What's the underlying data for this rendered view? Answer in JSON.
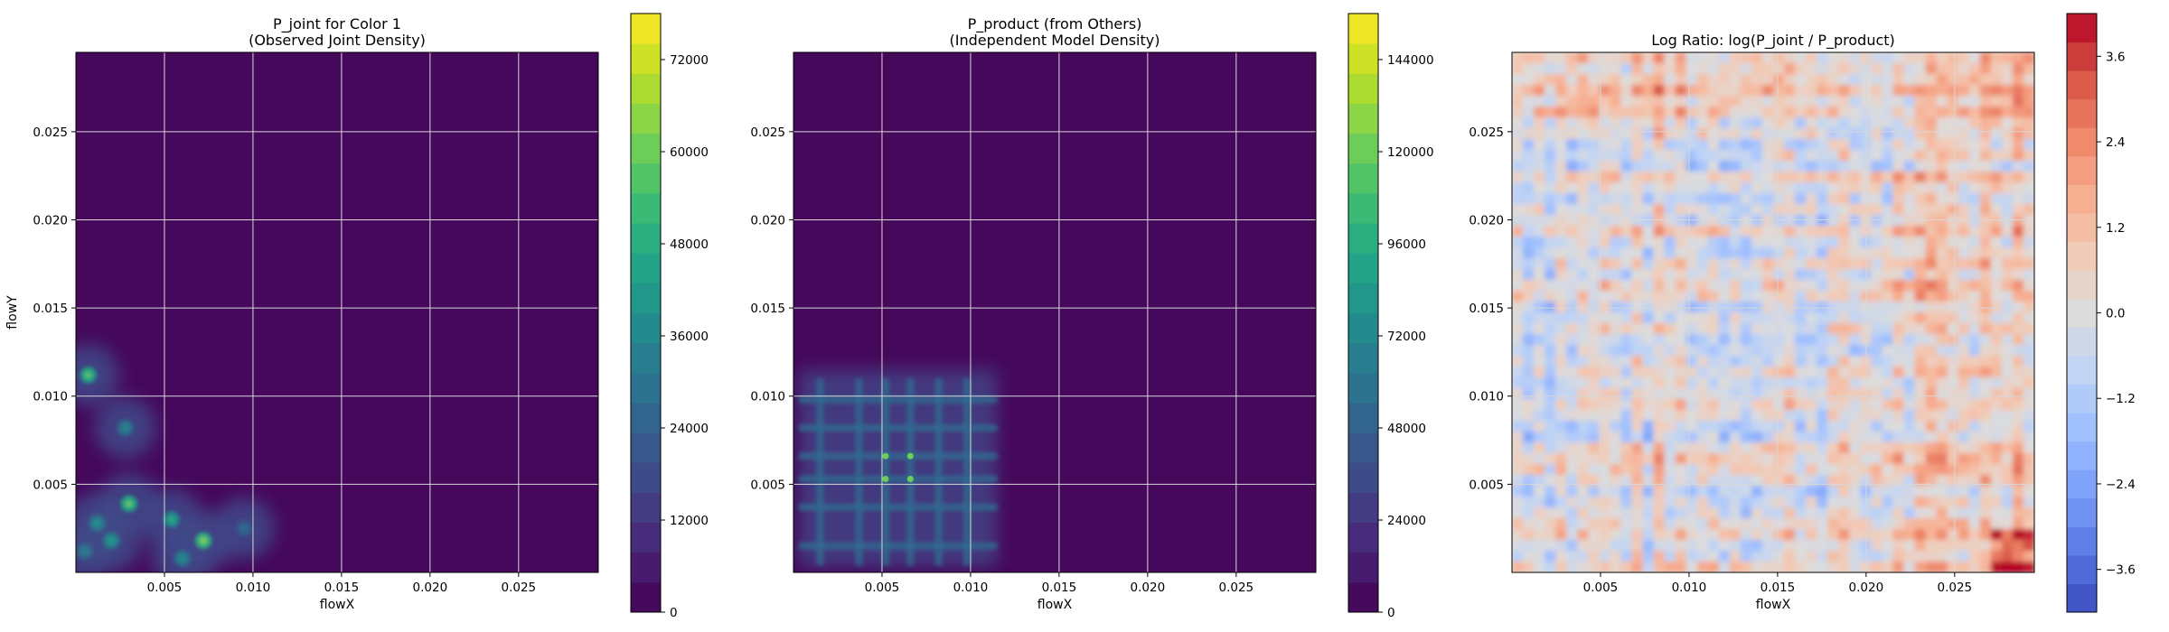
{
  "chart_data": [
    {
      "type": "heatmap",
      "title_lines": [
        "P_joint for Color 1",
        "(Observed Joint Density)"
      ],
      "xlabel": "flowX",
      "ylabel": "flowY",
      "xlim": [
        0.0,
        0.0295
      ],
      "ylim": [
        0.0,
        0.0295
      ],
      "xticks": [
        0.005,
        0.01,
        0.015,
        0.02,
        0.025
      ],
      "xtick_labels": [
        "0.005",
        "0.010",
        "0.015",
        "0.020",
        "0.025"
      ],
      "yticks": [
        0.005,
        0.01,
        0.015,
        0.02,
        0.025
      ],
      "ytick_labels": [
        "0.005",
        "0.010",
        "0.015",
        "0.020",
        "0.025"
      ],
      "grid": true,
      "colormap": "viridis",
      "colorbar": {
        "range": [
          0,
          78000
        ],
        "ticks": [
          0,
          12000,
          24000,
          36000,
          48000,
          60000,
          72000
        ],
        "tick_labels": [
          "0",
          "12000",
          "24000",
          "36000",
          "48000",
          "60000",
          "72000"
        ],
        "levels": 20
      },
      "density_peaks": [
        {
          "x": 0.0007,
          "y": 0.0112,
          "value": 60000
        },
        {
          "x": 0.003,
          "y": 0.0039,
          "value": 62000
        },
        {
          "x": 0.0072,
          "y": 0.0018,
          "value": 66000
        },
        {
          "x": 0.0054,
          "y": 0.003,
          "value": 50000
        },
        {
          "x": 0.0012,
          "y": 0.0028,
          "value": 42000
        },
        {
          "x": 0.0028,
          "y": 0.0082,
          "value": 38000
        },
        {
          "x": 0.006,
          "y": 0.0008,
          "value": 40000
        },
        {
          "x": 0.0005,
          "y": 0.0012,
          "value": 36000
        },
        {
          "x": 0.0095,
          "y": 0.0025,
          "value": 30000
        },
        {
          "x": 0.002,
          "y": 0.0018,
          "value": 45000
        }
      ]
    },
    {
      "type": "heatmap",
      "title_lines": [
        "P_product (from Others)",
        "(Independent Model Density)"
      ],
      "xlabel": "flowX",
      "ylabel": "",
      "xlim": [
        0.0,
        0.0295
      ],
      "ylim": [
        0.0,
        0.0295
      ],
      "xticks": [
        0.005,
        0.01,
        0.015,
        0.02,
        0.025
      ],
      "xtick_labels": [
        "0.005",
        "0.010",
        "0.015",
        "0.020",
        "0.025"
      ],
      "yticks": [
        0.005,
        0.01,
        0.015,
        0.02,
        0.025
      ],
      "ytick_labels": [
        "0.005",
        "0.010",
        "0.015",
        "0.020",
        "0.025"
      ],
      "grid": true,
      "colormap": "viridis",
      "colorbar": {
        "range": [
          0,
          156000
        ],
        "ticks": [
          0,
          24000,
          48000,
          72000,
          96000,
          120000,
          144000
        ],
        "tick_labels": [
          "0",
          "24000",
          "48000",
          "72000",
          "96000",
          "120000",
          "144000"
        ],
        "levels": 20
      },
      "marginal_x_peaks": [
        0.0015,
        0.0037,
        0.0052,
        0.0066,
        0.0082,
        0.0098
      ],
      "marginal_y_peaks": [
        0.0015,
        0.0037,
        0.0053,
        0.0066,
        0.0082,
        0.0098
      ]
    },
    {
      "type": "heatmap",
      "title": "Log Ratio: log(P_joint / P_product)",
      "xlabel": "flowX",
      "ylabel": "",
      "xlim": [
        0.0,
        0.0295
      ],
      "ylim": [
        0.0,
        0.0295
      ],
      "xticks": [
        0.005,
        0.01,
        0.015,
        0.02,
        0.025
      ],
      "xtick_labels": [
        "0.005",
        "0.010",
        "0.015",
        "0.020",
        "0.025"
      ],
      "yticks": [
        0.005,
        0.01,
        0.015,
        0.02,
        0.025
      ],
      "ytick_labels": [
        "0.005",
        "0.010",
        "0.015",
        "0.020",
        "0.025"
      ],
      "grid": true,
      "colormap": "coolwarm",
      "colorbar": {
        "range": [
          -4.2,
          4.2
        ],
        "ticks": [
          -3.6,
          -2.4,
          -1.2,
          0.0,
          1.2,
          2.4,
          3.6
        ],
        "tick_labels": [
          "−3.6",
          "−2.4",
          "−1.2",
          "0.0",
          "1.2",
          "2.4",
          "3.6"
        ],
        "levels": 21
      }
    }
  ]
}
